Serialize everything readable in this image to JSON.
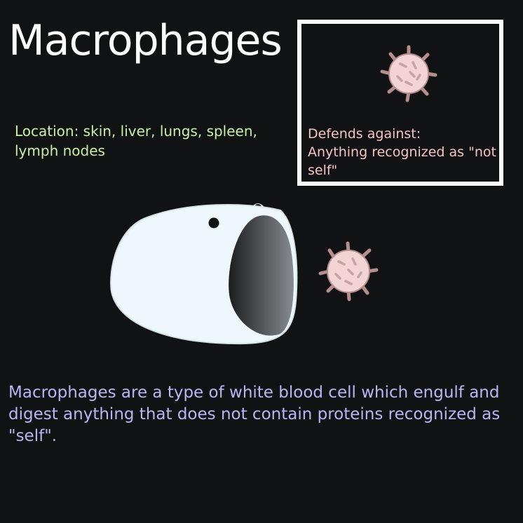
{
  "title": "Macrophages",
  "location": "Location: skin, liver, lungs, spleen, lymph nodes",
  "defends": {
    "label": "Defends against:",
    "value": "Anything recognized as \"not self\""
  },
  "description": "Macrophages are a type of white blood cell which engulf and digest anything that does not contain proteins recognized as \"self\".",
  "colors": {
    "background": "#111214",
    "title": "#ffffff",
    "location": "#c8f0a8",
    "defends": "#f6c4c4",
    "description": "#b9b6f4",
    "germ_fill": "#f2d4d4",
    "germ_spike": "#b88d8d",
    "cell_fill": "#eef8fc"
  },
  "icons": {
    "germ": "germ-icon",
    "macrophage": "macrophage-icon"
  }
}
